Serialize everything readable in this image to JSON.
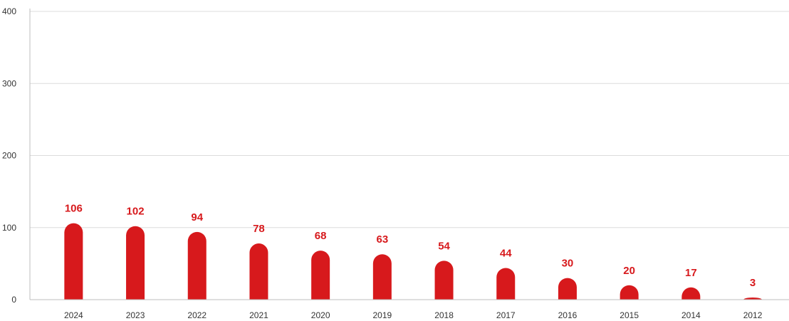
{
  "chart_data": {
    "type": "bar",
    "title": "",
    "xlabel": "",
    "ylabel": "",
    "categories": [
      "2024",
      "2023",
      "2022",
      "2021",
      "2020",
      "2019",
      "2018",
      "2017",
      "2016",
      "2015",
      "2014",
      "2012"
    ],
    "values": [
      106,
      102,
      94,
      78,
      68,
      63,
      54,
      44,
      30,
      20,
      17,
      3
    ],
    "ylim": [
      0,
      400
    ],
    "yticks": [
      0,
      100,
      200,
      300,
      400
    ],
    "grid": true,
    "legend": "none",
    "bar_color": "#d7191c",
    "label_color": "#d7191c",
    "data_labels": true,
    "bar_style": "rounded-top"
  }
}
